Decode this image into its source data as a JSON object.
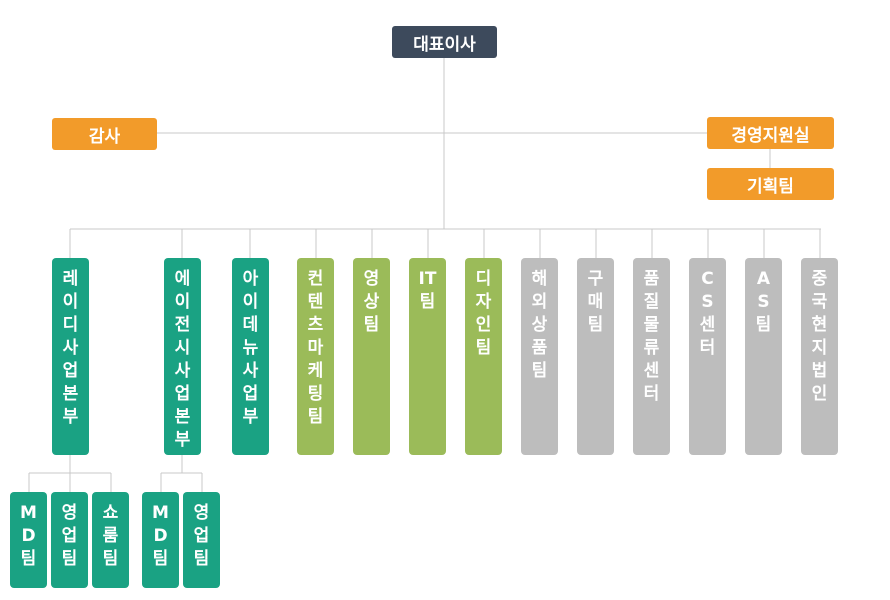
{
  "ceo": "대표이사",
  "audit": "감사",
  "support": "경영지원실",
  "planning": "기획팀",
  "depts": [
    {
      "label": "레이디사업본부"
    },
    {
      "label": "에이전시사업본부"
    },
    {
      "label": "아이데뉴사업부"
    },
    {
      "label": "컨텐츠마케팅팀"
    },
    {
      "label": "영상팀"
    },
    {
      "label": "IT팀"
    },
    {
      "label": "디자인팀"
    },
    {
      "label": "해외상품팀"
    },
    {
      "label": "구매팀"
    },
    {
      "label": "품질물류센터"
    },
    {
      "label": "CS센터"
    },
    {
      "label": "AS팀"
    },
    {
      "label": "중국현지법인"
    }
  ],
  "lady_subteams": [
    "MD팀",
    "영업팀",
    "쇼룸팀"
  ],
  "agency_subteams": [
    "MD팀",
    "영업팀"
  ],
  "colors": {
    "ceo": "#3d4a5c",
    "staff": "#f29b2a",
    "business": "#1aa283",
    "content": "#9bbb59",
    "operations": "#bdbdbd",
    "connector": "#c8c8c8"
  }
}
